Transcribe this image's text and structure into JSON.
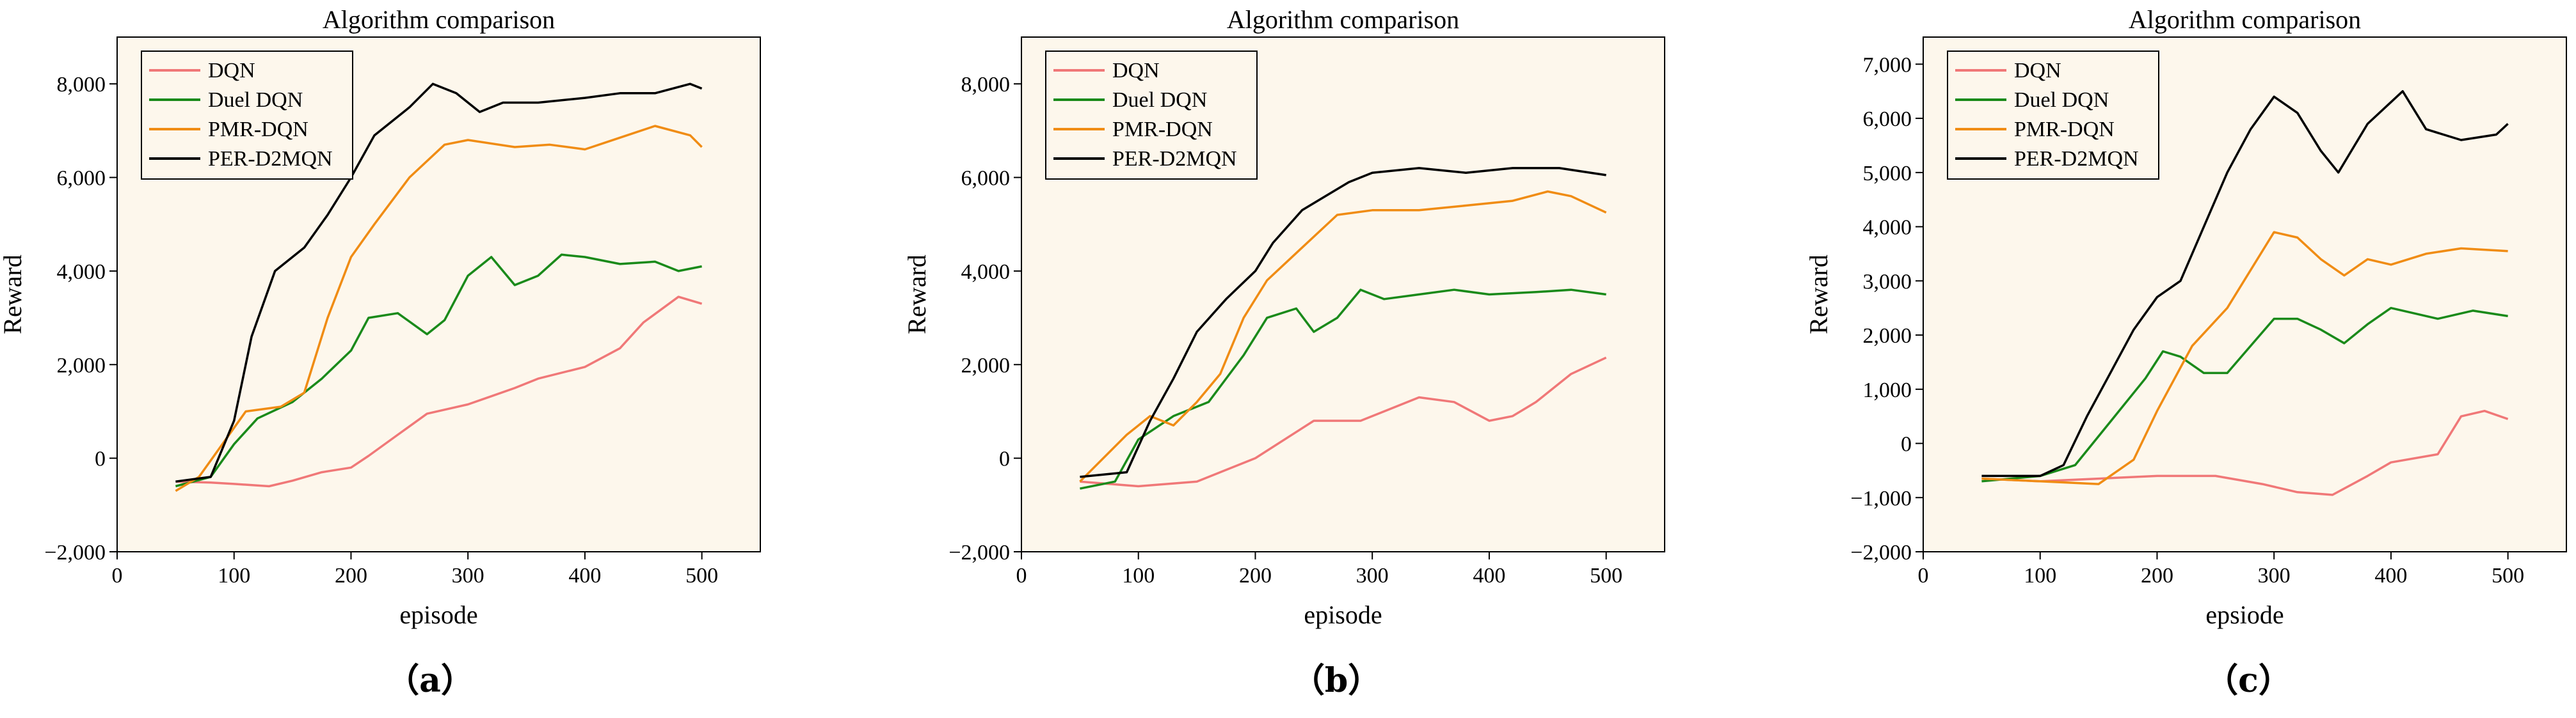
{
  "chart_data": [
    {
      "type": "line",
      "title": "Algorithm comparison",
      "xlabel": "episode",
      "ylabel": "Reward",
      "caption": "（a）",
      "xlim": [
        0,
        550
      ],
      "ylim": [
        -2000,
        9000
      ],
      "xticks": [
        0,
        100,
        200,
        300,
        400,
        500
      ],
      "yticks": [
        -2000,
        0,
        2000,
        4000,
        6000,
        8000
      ],
      "xtick_labels": [
        "0",
        "100",
        "200",
        "300",
        "400",
        "500"
      ],
      "ytick_labels": [
        "−2,000",
        "0",
        "2,000",
        "4,000",
        "6,000",
        "8,000"
      ],
      "legend_position": "top-left",
      "grid": false,
      "series": [
        {
          "name": "DQN",
          "color": "#f07878",
          "x": [
            50,
            80,
            100,
            130,
            150,
            175,
            200,
            215,
            240,
            265,
            300,
            340,
            360,
            400,
            430,
            450,
            480,
            500
          ],
          "y": [
            -500,
            -520,
            -550,
            -600,
            -480,
            -300,
            -200,
            50,
            500,
            950,
            1150,
            1500,
            1700,
            1950,
            2350,
            2900,
            3450,
            3300
          ]
        },
        {
          "name": "Duel DQN",
          "color": "#1a8a1a",
          "x": [
            50,
            80,
            100,
            120,
            150,
            175,
            200,
            215,
            240,
            265,
            280,
            300,
            320,
            340,
            360,
            380,
            400,
            430,
            460,
            480,
            500
          ],
          "y": [
            -600,
            -400,
            300,
            850,
            1200,
            1700,
            2300,
            3000,
            3100,
            2650,
            2950,
            3900,
            4300,
            3700,
            3900,
            4350,
            4300,
            4150,
            4200,
            4000,
            4100
          ]
        },
        {
          "name": "PMR-DQN",
          "color": "#f08c14",
          "x": [
            50,
            70,
            90,
            110,
            140,
            160,
            180,
            200,
            220,
            250,
            280,
            300,
            340,
            370,
            400,
            430,
            460,
            490,
            500
          ],
          "y": [
            -700,
            -400,
            300,
            1000,
            1100,
            1400,
            3000,
            4300,
            5000,
            6000,
            6700,
            6800,
            6650,
            6700,
            6600,
            6850,
            7100,
            6900,
            6650
          ]
        },
        {
          "name": "PER-D2MQN",
          "color": "#000000",
          "x": [
            50,
            80,
            100,
            115,
            135,
            160,
            180,
            200,
            220,
            250,
            270,
            290,
            310,
            330,
            360,
            400,
            430,
            460,
            490,
            500
          ],
          "y": [
            -500,
            -400,
            800,
            2600,
            4000,
            4500,
            5200,
            6000,
            6900,
            7500,
            8000,
            7800,
            7400,
            7600,
            7600,
            7700,
            7800,
            7800,
            8000,
            7900
          ]
        }
      ]
    },
    {
      "type": "line",
      "title": "Algorithm comparison",
      "xlabel": "episode",
      "ylabel": "Reward",
      "caption": "（b）",
      "xlim": [
        0,
        550
      ],
      "ylim": [
        -2000,
        9000
      ],
      "xticks": [
        0,
        100,
        200,
        300,
        400,
        500
      ],
      "yticks": [
        -2000,
        0,
        2000,
        4000,
        6000,
        8000
      ],
      "xtick_labels": [
        "0",
        "100",
        "200",
        "300",
        "400",
        "500"
      ],
      "ytick_labels": [
        "−2,000",
        "0",
        "2,000",
        "4,000",
        "6,000",
        "8,000"
      ],
      "legend_position": "top-left",
      "grid": false,
      "series": [
        {
          "name": "DQN",
          "color": "#f07878",
          "x": [
            50,
            100,
            150,
            200,
            250,
            290,
            310,
            340,
            370,
            400,
            420,
            440,
            470,
            500
          ],
          "y": [
            -500,
            -600,
            -500,
            0,
            800,
            800,
            1000,
            1300,
            1200,
            800,
            900,
            1200,
            1800,
            2150
          ]
        },
        {
          "name": "Duel DQN",
          "color": "#1a8a1a",
          "x": [
            50,
            80,
            100,
            130,
            160,
            190,
            210,
            235,
            250,
            270,
            290,
            310,
            340,
            370,
            400,
            440,
            470,
            500
          ],
          "y": [
            -650,
            -500,
            400,
            900,
            1200,
            2200,
            3000,
            3200,
            2700,
            3000,
            3600,
            3400,
            3500,
            3600,
            3500,
            3550,
            3600,
            3500
          ]
        },
        {
          "name": "PMR-DQN",
          "color": "#f08c14",
          "x": [
            50,
            70,
            90,
            110,
            130,
            150,
            170,
            190,
            210,
            240,
            270,
            300,
            340,
            380,
            420,
            450,
            470,
            500
          ],
          "y": [
            -500,
            0,
            500,
            900,
            700,
            1200,
            1800,
            3000,
            3800,
            4500,
            5200,
            5300,
            5300,
            5400,
            5500,
            5700,
            5600,
            5250
          ]
        },
        {
          "name": "PER-D2MQN",
          "color": "#000000",
          "x": [
            50,
            90,
            110,
            130,
            150,
            175,
            200,
            215,
            240,
            260,
            280,
            300,
            340,
            380,
            420,
            460,
            500
          ],
          "y": [
            -400,
            -300,
            800,
            1700,
            2700,
            3400,
            4000,
            4600,
            5300,
            5600,
            5900,
            6100,
            6200,
            6100,
            6200,
            6200,
            6050
          ]
        }
      ]
    },
    {
      "type": "line",
      "title": "Algorithm comparison",
      "xlabel": "epsiode",
      "ylabel": "Reward",
      "caption": "（c）",
      "xlim": [
        0,
        550
      ],
      "ylim": [
        -2000,
        7500
      ],
      "xticks": [
        0,
        100,
        200,
        300,
        400,
        500
      ],
      "yticks": [
        -2000,
        -1000,
        0,
        1000,
        2000,
        3000,
        4000,
        5000,
        6000,
        7000
      ],
      "xtick_labels": [
        "0",
        "100",
        "200",
        "300",
        "400",
        "500"
      ],
      "ytick_labels": [
        "−2,000",
        "−1,000",
        "0",
        "1,000",
        "2,000",
        "3,000",
        "4,000",
        "5,000",
        "6,000",
        "7,000"
      ],
      "legend_position": "top-left",
      "grid": false,
      "series": [
        {
          "name": "DQN",
          "color": "#f07878",
          "x": [
            50,
            100,
            150,
            200,
            250,
            290,
            320,
            350,
            380,
            400,
            440,
            460,
            480,
            500
          ],
          "y": [
            -650,
            -700,
            -650,
            -600,
            -600,
            -750,
            -900,
            -950,
            -600,
            -350,
            -200,
            500,
            600,
            450
          ]
        },
        {
          "name": "Duel DQN",
          "color": "#1a8a1a",
          "x": [
            50,
            100,
            130,
            160,
            190,
            205,
            220,
            240,
            260,
            280,
            300,
            320,
            340,
            360,
            380,
            400,
            440,
            470,
            500
          ],
          "y": [
            -700,
            -600,
            -400,
            400,
            1200,
            1700,
            1600,
            1300,
            1300,
            1800,
            2300,
            2300,
            2100,
            1850,
            2200,
            2500,
            2300,
            2450,
            2350
          ]
        },
        {
          "name": "PMR-DQN",
          "color": "#f08c14",
          "x": [
            50,
            100,
            150,
            180,
            200,
            230,
            260,
            280,
            300,
            320,
            340,
            360,
            380,
            400,
            430,
            460,
            500
          ],
          "y": [
            -650,
            -700,
            -750,
            -300,
            600,
            1800,
            2500,
            3200,
            3900,
            3800,
            3400,
            3100,
            3400,
            3300,
            3500,
            3600,
            3550
          ]
        },
        {
          "name": "PER-D2MQN",
          "color": "#000000",
          "x": [
            50,
            100,
            120,
            140,
            160,
            180,
            200,
            220,
            240,
            260,
            280,
            300,
            320,
            340,
            355,
            380,
            410,
            430,
            460,
            490,
            500
          ],
          "y": [
            -600,
            -600,
            -400,
            500,
            1300,
            2100,
            2700,
            3000,
            4000,
            5000,
            5800,
            6400,
            6100,
            5400,
            5000,
            5900,
            6500,
            5800,
            5600,
            5700,
            5900
          ]
        }
      ]
    }
  ]
}
